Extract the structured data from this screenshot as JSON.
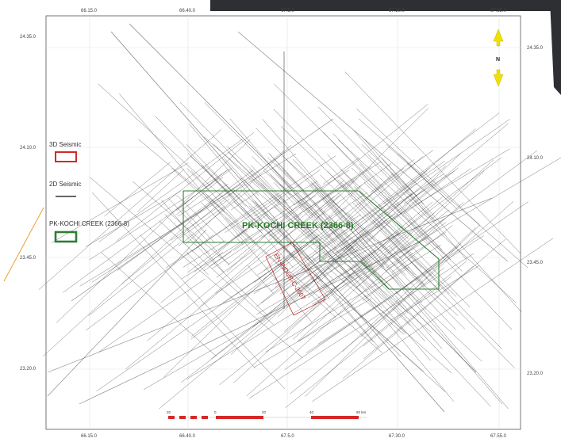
{
  "map": {
    "x_ticks": [
      "66.15.0",
      "66.40.0",
      "67.5.0",
      "67.30.0",
      "67.55.0"
    ],
    "y_ticks_left": [
      "24.35.0",
      "24.10.0",
      "23.45.0",
      "23.20.0"
    ],
    "y_ticks_right": [
      "24.35.0",
      "24.10.0",
      "23.45.0",
      "23.20.0"
    ],
    "block_label": "PK-KOCHI CREEK (2366-8)",
    "license_label": "EN-INDUS-C-2007",
    "north_label": "N",
    "colors": {
      "block_outline": "#2e7d32",
      "block_text": "#1e7a1e",
      "seismic_3d": "#d62828",
      "seismic_2d": "#333333",
      "license": "#b22222",
      "north_arrow": "#f0e000",
      "scalebar": "#d62828"
    }
  },
  "legend": {
    "items": [
      {
        "label": "3D Seismic",
        "symbol": "red-rectangle"
      },
      {
        "label": "2D Seismic",
        "symbol": "black-line"
      },
      {
        "label": "PK-KOCHI CREEK (2366-8)",
        "symbol": "green-rectangle"
      }
    ]
  },
  "scalebar": {
    "labels": [
      "20",
      "0",
      "20",
      "40",
      "60 km"
    ]
  }
}
